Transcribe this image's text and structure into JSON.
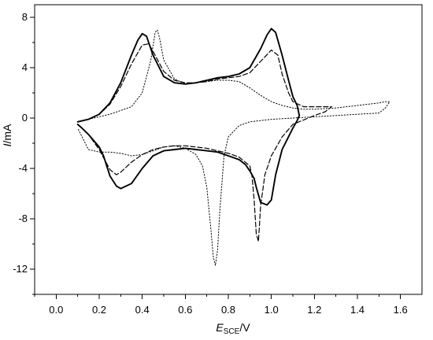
{
  "chart_data": {
    "type": "line",
    "title": "",
    "xlabel": {
      "prefix": "E",
      "subscript": "SCE",
      "suffix": "/V"
    },
    "ylabel": {
      "prefix": "I",
      "suffix": "/mA"
    },
    "xlim": [
      -0.1,
      1.7
    ],
    "ylim": [
      -14,
      9
    ],
    "x_ticks": [
      0.0,
      0.2,
      0.4,
      0.6,
      0.8,
      1.0,
      1.2,
      1.4,
      1.6
    ],
    "y_ticks": [
      8,
      4,
      0,
      -4,
      -8,
      -12
    ],
    "x_tick_labels": [
      "0.0",
      "0.2",
      "0.4",
      "0.6",
      "0.8",
      "1.0",
      "1.2",
      "1.4",
      "1.6"
    ],
    "y_tick_labels": [
      "8",
      "4",
      "0",
      "-4",
      "-8",
      "-12"
    ],
    "grid": false,
    "series": [
      {
        "style": "solid",
        "color": "#000000",
        "x": [
          0.1,
          0.15,
          0.2,
          0.25,
          0.3,
          0.35,
          0.38,
          0.4,
          0.42,
          0.45,
          0.5,
          0.55,
          0.6,
          0.65,
          0.7,
          0.75,
          0.8,
          0.85,
          0.9,
          0.95,
          0.98,
          1.0,
          1.02,
          1.05,
          1.08,
          1.1,
          1.12,
          1.13,
          1.12,
          1.1,
          1.05,
          1.02,
          1.0,
          0.98,
          0.95,
          0.93,
          0.92,
          0.9,
          0.88,
          0.85,
          0.8,
          0.75,
          0.7,
          0.65,
          0.6,
          0.55,
          0.5,
          0.45,
          0.4,
          0.35,
          0.3,
          0.28,
          0.25,
          0.22,
          0.2,
          0.15,
          0.12,
          0.1
        ],
        "y": [
          -0.3,
          -0.1,
          0.3,
          1.2,
          2.8,
          5.0,
          6.2,
          6.7,
          6.5,
          5.0,
          3.3,
          2.8,
          2.7,
          2.8,
          3.0,
          3.2,
          3.3,
          3.5,
          4.0,
          5.5,
          6.6,
          7.1,
          6.8,
          5.0,
          3.0,
          1.7,
          1.0,
          0.2,
          -0.2,
          -0.8,
          -2.5,
          -4.5,
          -6.5,
          -6.9,
          -6.7,
          -5.5,
          -4.8,
          -4.2,
          -3.7,
          -3.3,
          -3.0,
          -2.7,
          -2.6,
          -2.5,
          -2.4,
          -2.5,
          -2.6,
          -3.0,
          -4.0,
          -5.2,
          -5.6,
          -5.4,
          -4.6,
          -3.0,
          -2.3,
          -1.3,
          -0.8,
          -0.5
        ],
        "stroke_width": 1.9
      },
      {
        "style": "dashed",
        "color": "#000000",
        "x": [
          0.1,
          0.15,
          0.2,
          0.25,
          0.3,
          0.35,
          0.4,
          0.43,
          0.45,
          0.5,
          0.55,
          0.6,
          0.65,
          0.7,
          0.75,
          0.8,
          0.85,
          0.9,
          0.95,
          1.0,
          1.03,
          1.05,
          1.08,
          1.1,
          1.15,
          1.2,
          1.25,
          1.28,
          1.25,
          1.2,
          1.1,
          1.05,
          1.0,
          0.97,
          0.95,
          0.94,
          0.93,
          0.92,
          0.91,
          0.9,
          0.85,
          0.8,
          0.75,
          0.7,
          0.65,
          0.6,
          0.55,
          0.5,
          0.45,
          0.4,
          0.35,
          0.3,
          0.28,
          0.25,
          0.2,
          0.15,
          0.1
        ],
        "y": [
          -0.3,
          -0.1,
          0.3,
          1.1,
          2.5,
          4.3,
          5.8,
          5.9,
          5.3,
          3.7,
          3.0,
          2.8,
          2.8,
          2.9,
          3.1,
          3.2,
          3.3,
          3.6,
          4.5,
          5.4,
          5.0,
          3.5,
          2.0,
          1.3,
          0.9,
          0.9,
          0.9,
          0.9,
          0.5,
          0.2,
          -0.5,
          -1.5,
          -3.0,
          -4.5,
          -7.0,
          -9.8,
          -9.2,
          -6.5,
          -4.6,
          -3.8,
          -3.1,
          -2.8,
          -2.6,
          -2.4,
          -2.3,
          -2.2,
          -2.2,
          -2.3,
          -2.5,
          -2.9,
          -3.5,
          -4.3,
          -4.5,
          -4.1,
          -2.5,
          -1.3,
          -0.5
        ],
        "stroke_width": 1.2
      },
      {
        "style": "dotted",
        "color": "#000000",
        "x": [
          0.1,
          0.15,
          0.2,
          0.25,
          0.3,
          0.35,
          0.4,
          0.44,
          0.46,
          0.47,
          0.48,
          0.5,
          0.55,
          0.6,
          0.65,
          0.7,
          0.75,
          0.8,
          0.85,
          0.9,
          0.95,
          1.0,
          1.05,
          1.1,
          1.15,
          1.2,
          1.3,
          1.4,
          1.5,
          1.53,
          1.55,
          1.53,
          1.5,
          1.4,
          1.3,
          1.2,
          1.1,
          1.0,
          0.9,
          0.85,
          0.8,
          0.78,
          0.76,
          0.75,
          0.74,
          0.73,
          0.72,
          0.7,
          0.68,
          0.65,
          0.6,
          0.55,
          0.5,
          0.45,
          0.4,
          0.35,
          0.3,
          0.25,
          0.2,
          0.15,
          0.1
        ],
        "y": [
          -0.3,
          -0.1,
          0.1,
          0.3,
          0.6,
          0.9,
          2.0,
          4.6,
          6.8,
          7.0,
          6.4,
          4.6,
          3.1,
          2.7,
          2.8,
          2.9,
          3.0,
          3.0,
          2.9,
          2.4,
          1.8,
          1.3,
          1.0,
          0.8,
          0.7,
          0.7,
          0.8,
          1.0,
          1.2,
          1.3,
          1.3,
          0.8,
          0.4,
          0.3,
          0.2,
          0.1,
          0.0,
          -0.1,
          -0.3,
          -0.6,
          -1.5,
          -3.0,
          -7.5,
          -10.5,
          -11.7,
          -11.0,
          -9.0,
          -5.5,
          -3.8,
          -2.9,
          -2.4,
          -2.2,
          -2.3,
          -2.6,
          -2.9,
          -3.0,
          -2.8,
          -2.7,
          -2.7,
          -2.5,
          -0.8
        ],
        "stroke_width": 1.0
      }
    ]
  }
}
